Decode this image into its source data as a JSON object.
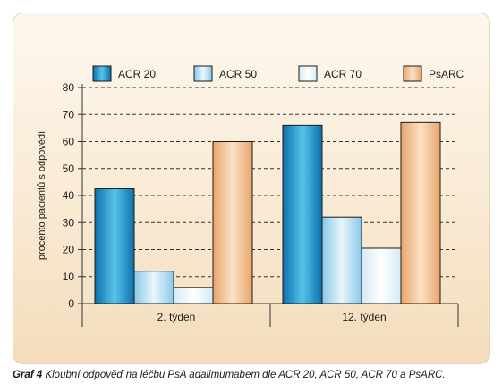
{
  "chart_data": {
    "type": "bar",
    "categories": [
      "2. týden",
      "12. týden"
    ],
    "series": [
      {
        "name": "ACR 20",
        "values": [
          42.5,
          66
        ]
      },
      {
        "name": "ACR 50",
        "values": [
          12,
          32
        ]
      },
      {
        "name": "ACR 70",
        "values": [
          6,
          20.5
        ]
      },
      {
        "name": "PsARC",
        "values": [
          60,
          67
        ]
      }
    ],
    "ylabel": "procento pacientů s odpovědí",
    "xlabel": "",
    "ylim": [
      0,
      80
    ],
    "yticks": [
      0,
      10,
      20,
      30,
      40,
      50,
      60,
      70,
      80
    ],
    "grid": "dashed horizontal",
    "legend": "top",
    "colors": {
      "ACR 20": [
        "#0e6fa8",
        "#56c4ec"
      ],
      "ACR 50": [
        "#8bc8e8",
        "#e8f6fd"
      ],
      "ACR 70": [
        "#d4eaf6",
        "#ffffff"
      ],
      "PsARC": [
        "#e9a46a",
        "#fbe1c6"
      ]
    }
  },
  "caption": {
    "label": "Graf 4",
    "text": "Kloubní odpověď na léčbu PsA adalimumabem dle ACR 20, ACR 50, ACR 70 a PsARC."
  }
}
